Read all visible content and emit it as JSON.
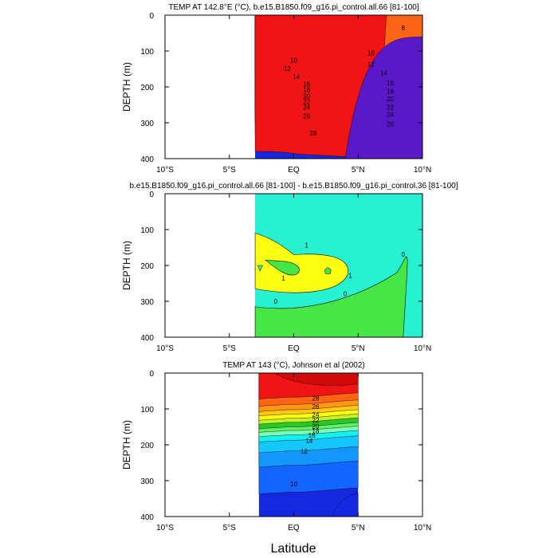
{
  "figure": {
    "xlabel": "Latitude"
  },
  "chart_data": [
    {
      "type": "heatmap",
      "title": "TEMP AT 142.8°E (°C), b.e15.B1850.f09_g16.pi_control.all.66 [81-100]",
      "ylabel": "DEPTH (m)",
      "xlim": [
        -10,
        10
      ],
      "ylim": [
        400,
        0
      ],
      "x_ticks": [
        -10,
        -5,
        0,
        5,
        10
      ],
      "x_tick_labels": [
        "10°S",
        "5°S",
        "EQ",
        "5°N",
        "10°N"
      ],
      "y_ticks": [
        0,
        100,
        200,
        300,
        400
      ],
      "y_tick_labels": [
        "0",
        "100",
        "200",
        "300",
        "400"
      ],
      "data_extent_x": [
        -3,
        10
      ],
      "data_extent_y": [
        0,
        400
      ],
      "contour_interval": 1,
      "contour_labels": [
        "28",
        "26",
        "26",
        "24",
        "24",
        "22",
        "22",
        "20",
        "20",
        "18",
        "18",
        "16",
        "16",
        "14",
        "14",
        "12",
        "12",
        "10",
        "10",
        "8"
      ],
      "colors": [
        "#5a18c8",
        "#1528e0",
        "#1464ff",
        "#1496ff",
        "#14c8ff",
        "#14f0f0",
        "#7affb4",
        "#64f064",
        "#28c828",
        "#c8f028",
        "#ffff14",
        "#ffc814",
        "#ff9614",
        "#ff6414",
        "#f01414"
      ]
    },
    {
      "type": "heatmap",
      "title": "b.e15.B1850.f09_g16.pi_control.all.66 [81-100] - b.e15.B1850.f09_g16.pi_control.36 [81-100]",
      "ylabel": "DEPTH (m)",
      "xlim": [
        -10,
        10
      ],
      "ylim": [
        400,
        0
      ],
      "x_ticks": [
        -10,
        -5,
        0,
        5,
        10
      ],
      "x_tick_labels": [
        "10°S",
        "5°S",
        "EQ",
        "5°N",
        "10°N"
      ],
      "y_ticks": [
        0,
        100,
        200,
        300,
        400
      ],
      "y_tick_labels": [
        "0",
        "100",
        "200",
        "300",
        "400"
      ],
      "data_extent_x": [
        -3,
        10
      ],
      "data_extent_y": [
        0,
        400
      ],
      "contour_interval": 1,
      "contour_labels": [
        "0",
        "0",
        "0",
        "1",
        "1",
        "1",
        "0"
      ],
      "colors": [
        "#28f0d2",
        "#46e646",
        "#ffff14"
      ]
    },
    {
      "type": "heatmap",
      "title": "TEMP AT 143 (°C), Johnson et al (2002)",
      "ylabel": "DEPTH (m)",
      "xlim": [
        -10,
        5
      ],
      "ylim": [
        400,
        0
      ],
      "x_ticks": [
        -10,
        -5,
        0,
        5,
        10
      ],
      "x_tick_labels": [
        "10°S",
        "5°S",
        "EQ",
        "5°N",
        "10°N"
      ],
      "y_ticks": [
        0,
        100,
        200,
        300,
        400
      ],
      "y_tick_labels": [
        "0",
        "100",
        "200",
        "300",
        "400"
      ],
      "data_extent_x": [
        -2.7,
        5
      ],
      "data_extent_y": [
        0,
        400
      ],
      "contour_interval": 1,
      "contour_labels": [
        "28",
        "26",
        "24",
        "22",
        "20",
        "18",
        "16",
        "14",
        "12",
        "10"
      ],
      "colors": [
        "#1528e0",
        "#1464ff",
        "#1496ff",
        "#14c8ff",
        "#14f0f0",
        "#7affb4",
        "#64f064",
        "#28c828",
        "#c8f028",
        "#ffff14",
        "#ffc814",
        "#ff9614",
        "#ff6414",
        "#f01414"
      ]
    }
  ]
}
